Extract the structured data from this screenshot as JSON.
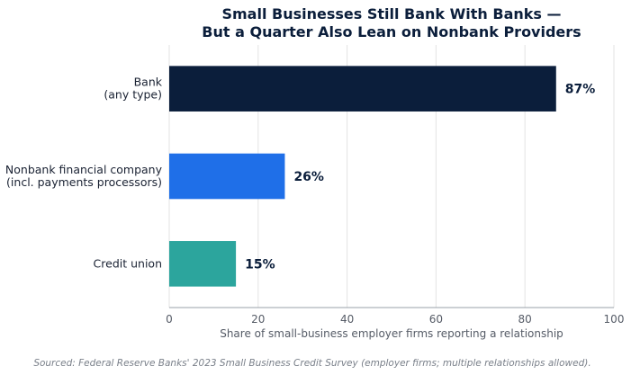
{
  "chart_data": {
    "type": "bar",
    "orientation": "horizontal",
    "title": [
      "Small Businesses Still Bank With Banks —",
      "But a Quarter Also Lean on Nonbank Providers"
    ],
    "categories": [
      [
        "Bank",
        "(any type)"
      ],
      [
        "Nonbank financial company",
        "(incl. payments processors)"
      ],
      [
        "Credit union"
      ]
    ],
    "values": [
      87,
      26,
      15
    ],
    "data_labels": [
      "87%",
      "26%",
      "15%"
    ],
    "colors": [
      "#0b1e3b",
      "#1f6fe8",
      "#2ca59d"
    ],
    "xlabel": "Share of small-business employer firms reporting a relationship",
    "xlim": [
      0,
      100
    ],
    "xticks": [
      0,
      20,
      40,
      60,
      80,
      100
    ],
    "grid": true,
    "source": "Sourced: Federal Reserve Banks' 2023 Small Business Credit Survey (employer firms; multiple relationships allowed)."
  }
}
